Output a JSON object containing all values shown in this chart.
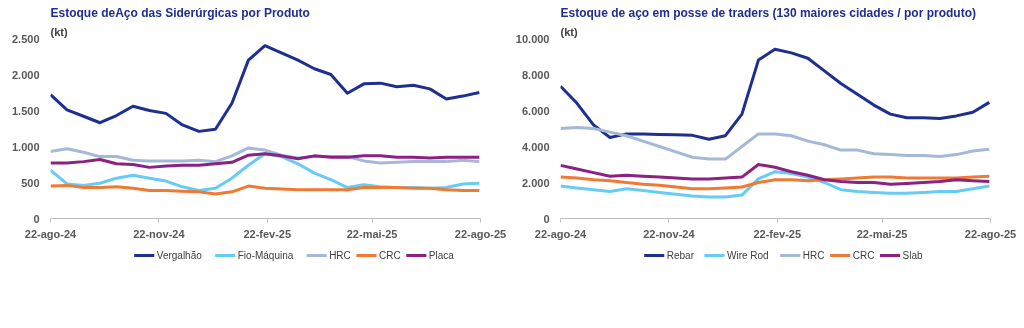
{
  "chart_data": [
    {
      "type": "line",
      "title": "Estoque deAço das Siderúrgicas por Produto",
      "ylabel": "(kt)",
      "legend": "bottom",
      "grid": false,
      "x": [
        "2024-08-22",
        "2024-09-05",
        "2024-09-19",
        "2024-10-03",
        "2024-10-17",
        "2024-10-31",
        "2024-11-14",
        "2024-11-28",
        "2024-12-12",
        "2024-12-26",
        "2025-01-09",
        "2025-01-23",
        "2025-02-06",
        "2025-02-20",
        "2025-03-06",
        "2025-03-20",
        "2025-04-03",
        "2025-04-17",
        "2025-05-01",
        "2025-05-15",
        "2025-05-29",
        "2025-06-12",
        "2025-06-26",
        "2025-07-10",
        "2025-07-24",
        "2025-08-07",
        "2025-08-21"
      ],
      "xlim": [
        "2024-08-22",
        "2025-08-22"
      ],
      "xticks": [
        {
          "value": "2024-08-22",
          "label": "22-ago-24"
        },
        {
          "value": "2024-11-22",
          "label": "22-nov-24"
        },
        {
          "value": "2025-02-22",
          "label": "22-fev-25"
        },
        {
          "value": "2025-05-22",
          "label": "22-mai-25"
        },
        {
          "value": "2025-08-22",
          "label": "22-ago-25"
        }
      ],
      "ylim": [
        0,
        2500
      ],
      "yticks": [
        0,
        {
          "value": 500,
          "label": "500"
        },
        {
          "value": 1000,
          "label": "1.000"
        },
        {
          "value": 1500,
          "label": "1.500"
        },
        {
          "value": 2000,
          "label": "2.000"
        },
        {
          "value": 2500,
          "label": "2.500"
        }
      ],
      "series": [
        {
          "name": "Vergalhão",
          "color": "#1f2f8f",
          "values": [
            1720,
            1510,
            1420,
            1330,
            1430,
            1560,
            1500,
            1460,
            1300,
            1210,
            1240,
            1600,
            2200,
            2400,
            2300,
            2200,
            2080,
            2000,
            1740,
            1870,
            1880,
            1830,
            1850,
            1800,
            1660,
            1700,
            1750
          ]
        },
        {
          "name": "Fio-Máquina",
          "color": "#66ccf5",
          "values": [
            670,
            480,
            460,
            490,
            560,
            600,
            560,
            520,
            440,
            390,
            420,
            560,
            740,
            900,
            860,
            760,
            630,
            540,
            430,
            470,
            440,
            430,
            430,
            420,
            430,
            480,
            490
          ]
        },
        {
          "name": "HRC",
          "color": "#a6b8d8",
          "values": [
            930,
            970,
            920,
            860,
            860,
            810,
            800,
            800,
            800,
            810,
            790,
            870,
            980,
            950,
            880,
            840,
            860,
            860,
            860,
            800,
            770,
            780,
            790,
            790,
            790,
            810,
            790
          ]
        },
        {
          "name": "CRC",
          "color": "#f07a34",
          "values": [
            450,
            460,
            430,
            430,
            440,
            420,
            390,
            390,
            380,
            370,
            340,
            370,
            450,
            420,
            410,
            400,
            400,
            400,
            400,
            430,
            430,
            430,
            420,
            420,
            400,
            390,
            390
          ]
        },
        {
          "name": "Placa",
          "color": "#8b2182",
          "values": [
            770,
            770,
            790,
            820,
            760,
            750,
            710,
            730,
            740,
            740,
            760,
            780,
            880,
            900,
            870,
            830,
            870,
            850,
            850,
            870,
            870,
            850,
            850,
            840,
            850,
            850,
            850
          ]
        }
      ]
    },
    {
      "type": "line",
      "title": "Estoque de aço em posse de traders (130 maiores cidades / por produto)",
      "ylabel": "(kt)",
      "legend": "bottom",
      "grid": false,
      "x": [
        "2024-08-22",
        "2024-09-05",
        "2024-09-19",
        "2024-10-03",
        "2024-10-17",
        "2024-10-31",
        "2024-11-14",
        "2024-11-28",
        "2024-12-12",
        "2024-12-26",
        "2025-01-09",
        "2025-01-23",
        "2025-02-06",
        "2025-02-20",
        "2025-03-06",
        "2025-03-20",
        "2025-04-03",
        "2025-04-17",
        "2025-05-01",
        "2025-05-15",
        "2025-05-29",
        "2025-06-12",
        "2025-06-26",
        "2025-07-10",
        "2025-07-24",
        "2025-08-07",
        "2025-08-21"
      ],
      "xlim": [
        "2024-08-22",
        "2025-08-22"
      ],
      "xticks": [
        {
          "value": "2024-08-22",
          "label": "22-ago-24"
        },
        {
          "value": "2024-11-22",
          "label": "22-nov-24"
        },
        {
          "value": "2025-02-22",
          "label": "22-fev-25"
        },
        {
          "value": "2025-05-22",
          "label": "22-mai-25"
        },
        {
          "value": "2025-08-22",
          "label": "22-ago-25"
        }
      ],
      "ylim": [
        0,
        10000
      ],
      "yticks": [
        0,
        {
          "value": 2000,
          "label": "2.000"
        },
        {
          "value": 4000,
          "label": "4.000"
        },
        {
          "value": 6000,
          "label": "6.000"
        },
        {
          "value": 8000,
          "label": "8.000"
        },
        {
          "value": 10000,
          "label": "10.000"
        }
      ],
      "series": [
        {
          "name": "Rebar",
          "color": "#1f2f8f",
          "values": [
            7350,
            6400,
            5200,
            4500,
            4700,
            4700,
            4670,
            4650,
            4620,
            4400,
            4600,
            5800,
            8800,
            9400,
            9200,
            8900,
            8200,
            7500,
            6900,
            6300,
            5800,
            5600,
            5600,
            5550,
            5700,
            5900,
            6450
          ]
        },
        {
          "name": "Wire Rod",
          "color": "#66ccf5",
          "values": [
            1800,
            1700,
            1600,
            1500,
            1650,
            1550,
            1450,
            1350,
            1250,
            1200,
            1200,
            1300,
            2200,
            2600,
            2500,
            2300,
            2000,
            1600,
            1500,
            1450,
            1400,
            1400,
            1450,
            1500,
            1500,
            1650,
            1800
          ]
        },
        {
          "name": "HRC",
          "color": "#a6b8d8",
          "values": [
            5000,
            5050,
            5000,
            4800,
            4600,
            4300,
            4000,
            3700,
            3400,
            3300,
            3300,
            4000,
            4700,
            4700,
            4600,
            4300,
            4100,
            3800,
            3800,
            3600,
            3550,
            3500,
            3500,
            3450,
            3550,
            3750,
            3850
          ]
        },
        {
          "name": "CRC",
          "color": "#f07a34",
          "values": [
            2300,
            2250,
            2150,
            2100,
            2000,
            1900,
            1850,
            1750,
            1650,
            1650,
            1700,
            1750,
            2000,
            2150,
            2150,
            2100,
            2150,
            2200,
            2250,
            2300,
            2300,
            2250,
            2250,
            2250,
            2250,
            2300,
            2350
          ]
        },
        {
          "name": "Slab",
          "color": "#8b2182",
          "values": [
            2950,
            2750,
            2550,
            2350,
            2400,
            2350,
            2300,
            2250,
            2200,
            2200,
            2250,
            2300,
            3000,
            2850,
            2600,
            2400,
            2150,
            2050,
            2000,
            2000,
            1900,
            1950,
            2000,
            2050,
            2150,
            2100,
            2050
          ]
        }
      ]
    }
  ]
}
